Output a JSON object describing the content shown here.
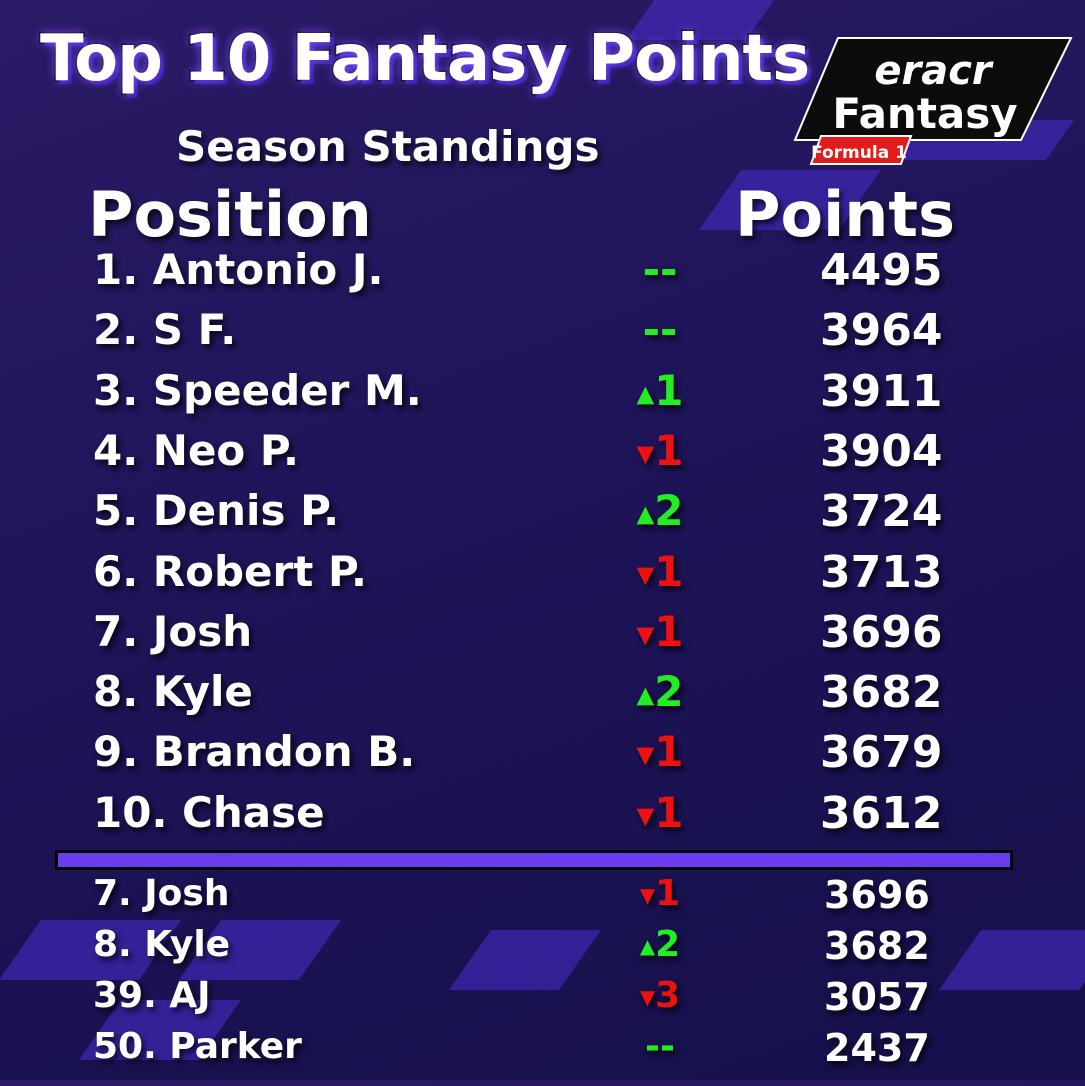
{
  "title": "Top 10 Fantasy Points",
  "subtitle": "Season Standings",
  "headers": {
    "position": "Position",
    "points": "Points"
  },
  "logo": {
    "line1": "eRACR",
    "line2": "Fantasy",
    "badge": "Formula 1"
  },
  "colors": {
    "up": "#22ee22",
    "down": "#ee1111",
    "accent": "#6a3cf0"
  },
  "top10": [
    {
      "name": "1. Antonio J.",
      "change": "--",
      "dir": "same",
      "points": "4495"
    },
    {
      "name": "2. S F.",
      "change": "--",
      "dir": "same",
      "points": "3964"
    },
    {
      "name": "3. Speeder M.",
      "change": "1",
      "dir": "up",
      "points": "3911"
    },
    {
      "name": "4. Neo P.",
      "change": "1",
      "dir": "down",
      "points": "3904"
    },
    {
      "name": "5. Denis P.",
      "change": "2",
      "dir": "up",
      "points": "3724"
    },
    {
      "name": "6. Robert P.",
      "change": "1",
      "dir": "down",
      "points": "3713"
    },
    {
      "name": "7. Josh",
      "change": "1",
      "dir": "down",
      "points": "3696"
    },
    {
      "name": "8. Kyle",
      "change": "2",
      "dir": "up",
      "points": "3682"
    },
    {
      "name": "9. Brandon B.",
      "change": "1",
      "dir": "down",
      "points": "3679"
    },
    {
      "name": "10. Chase",
      "change": "1",
      "dir": "down",
      "points": "3612"
    }
  ],
  "others": [
    {
      "name": "7. Josh",
      "change": "1",
      "dir": "down",
      "points": "3696"
    },
    {
      "name": "8. Kyle",
      "change": "2",
      "dir": "up",
      "points": "3682"
    },
    {
      "name": "39. AJ",
      "change": "3",
      "dir": "down",
      "points": "3057"
    },
    {
      "name": "50. Parker",
      "change": "--",
      "dir": "same",
      "points": "2437"
    }
  ]
}
